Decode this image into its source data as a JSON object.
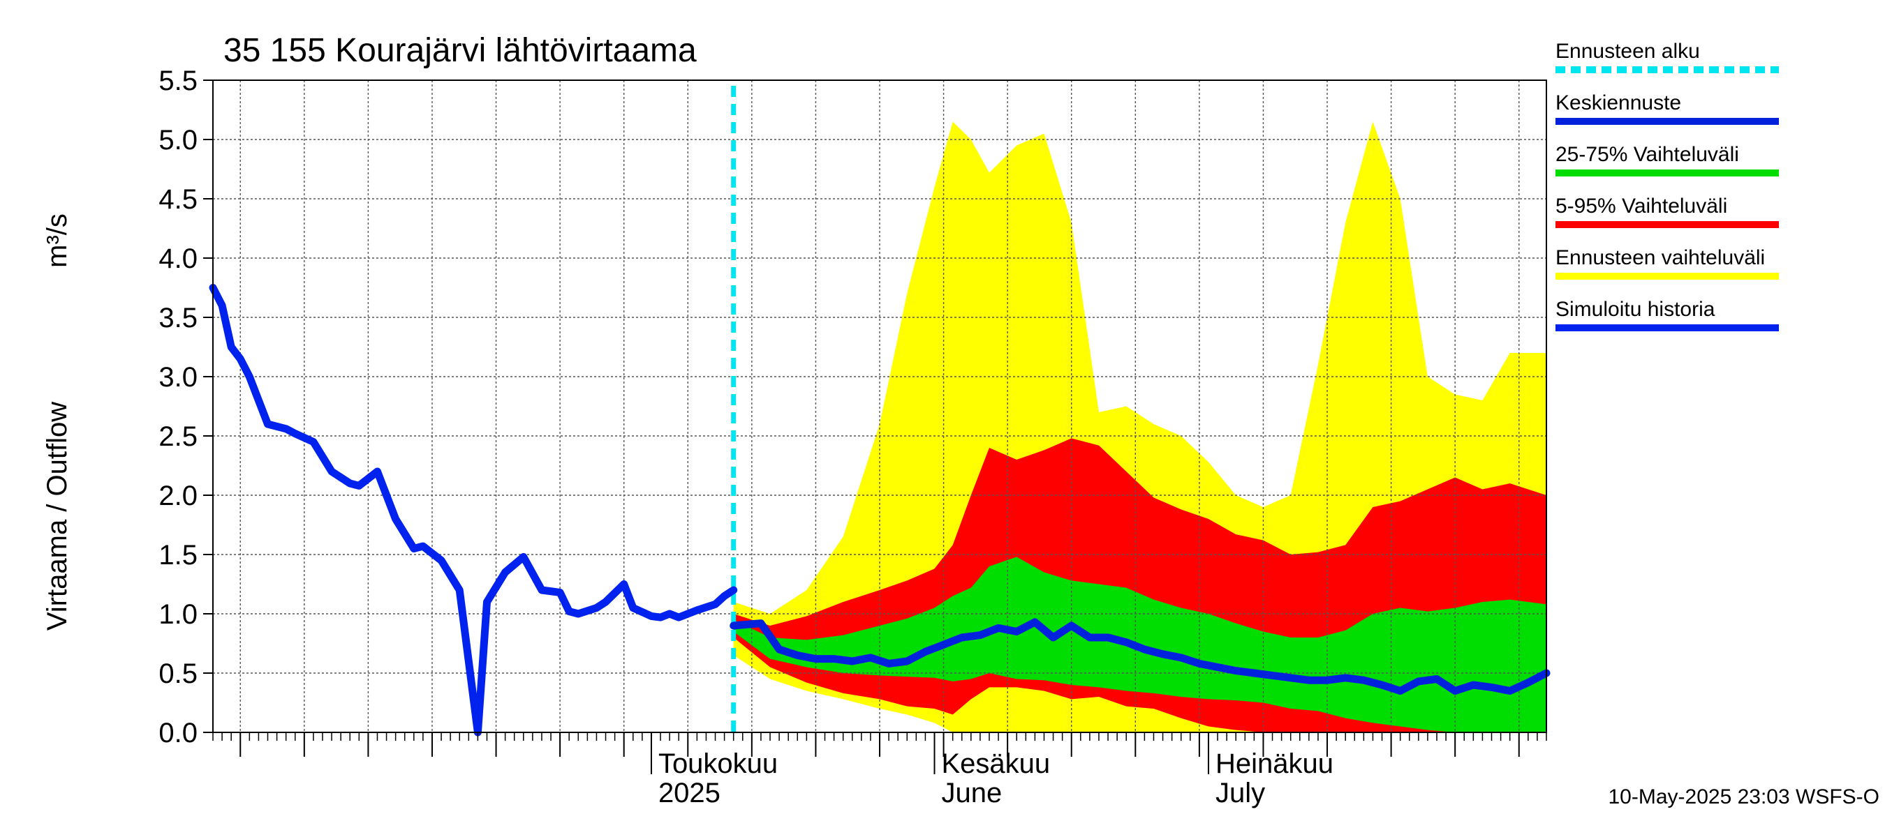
{
  "chart_data": {
    "type": "area",
    "title": "35 155 Kourajärvi lähtövirtaama",
    "ylabel": "Virtaama / Outflow",
    "yunit": "m³/s",
    "ylim": [
      0,
      5.5
    ],
    "yticks": [
      "0.0",
      "0.5",
      "1.0",
      "1.5",
      "2.0",
      "2.5",
      "3.0",
      "3.5",
      "4.0",
      "4.5",
      "5.0",
      "5.5"
    ],
    "xlim": [
      "2025-03-14",
      "2025-08-07"
    ],
    "grid": true,
    "legend_position": "right",
    "x_month_labels": [
      {
        "date": "2025-05-01",
        "line1": "Toukokuu",
        "line2": "2025"
      },
      {
        "date": "2025-06-01",
        "line1": "Kesäkuu",
        "line2": "June"
      },
      {
        "date": "2025-07-01",
        "line1": "Heinäkuu",
        "line2": "July"
      }
    ],
    "forecast_start": "2025-05-10",
    "colors": {
      "forecast_start": "#00e5ee",
      "mean": "#0022dd",
      "iqr": "#00dd00",
      "p5_95": "#ff0000",
      "range": "#ffff00",
      "history": "#0022ee"
    },
    "series": [
      {
        "name": "Simuloitu historia",
        "key": "history",
        "x": [
          "2025-03-14",
          "2025-03-15",
          "2025-03-16",
          "2025-03-17",
          "2025-03-18",
          "2025-03-19",
          "2025-03-20",
          "2025-03-21",
          "2025-03-22",
          "2025-03-23",
          "2025-03-25",
          "2025-03-27",
          "2025-03-29",
          "2025-03-30",
          "2025-04-01",
          "2025-04-03",
          "2025-04-05",
          "2025-04-06",
          "2025-04-08",
          "2025-04-10",
          "2025-04-12",
          "2025-04-13",
          "2025-04-15",
          "2025-04-17",
          "2025-04-19",
          "2025-04-21",
          "2025-04-22",
          "2025-04-23",
          "2025-04-25",
          "2025-04-26",
          "2025-04-28",
          "2025-04-29",
          "2025-05-01",
          "2025-05-02",
          "2025-05-03",
          "2025-05-04",
          "2025-05-06",
          "2025-05-08",
          "2025-05-09",
          "2025-05-10"
        ],
        "y": [
          3.75,
          3.6,
          3.25,
          3.15,
          3.0,
          2.8,
          2.6,
          2.58,
          2.56,
          2.52,
          2.45,
          2.2,
          2.1,
          2.08,
          2.2,
          1.8,
          1.55,
          1.57,
          1.45,
          1.2,
          0.0,
          1.1,
          1.35,
          1.48,
          1.2,
          1.18,
          1.02,
          1.0,
          1.05,
          1.1,
          1.25,
          1.05,
          0.98,
          0.97,
          1.0,
          0.97,
          1.03,
          1.08,
          1.15,
          1.2
        ]
      },
      {
        "name": "Ennusteen vaihteluväli",
        "key": "range",
        "x": [
          "2025-05-10",
          "2025-05-14",
          "2025-05-18",
          "2025-05-22",
          "2025-05-26",
          "2025-05-29",
          "2025-06-01",
          "2025-06-03",
          "2025-06-05",
          "2025-06-07",
          "2025-06-10",
          "2025-06-13",
          "2025-06-16",
          "2025-06-19",
          "2025-06-22",
          "2025-06-25",
          "2025-06-28",
          "2025-07-01",
          "2025-07-04",
          "2025-07-07",
          "2025-07-10",
          "2025-07-13",
          "2025-07-16",
          "2025-07-19",
          "2025-07-22",
          "2025-07-25",
          "2025-07-28",
          "2025-07-31",
          "2025-08-03",
          "2025-08-07"
        ],
        "upper": [
          1.1,
          1.0,
          1.2,
          1.65,
          2.6,
          3.7,
          4.6,
          5.15,
          5.0,
          4.72,
          4.95,
          5.05,
          4.3,
          2.7,
          2.75,
          2.6,
          2.5,
          2.28,
          2.0,
          1.9,
          2.0,
          3.1,
          4.3,
          5.15,
          4.5,
          3.0,
          2.85,
          2.8,
          3.2,
          3.2
        ],
        "lower": [
          0.65,
          0.45,
          0.35,
          0.28,
          0.2,
          0.15,
          0.08,
          0.0,
          0.0,
          0.0,
          0.0,
          0.0,
          0.0,
          0.0,
          0.0,
          0.0,
          0.0,
          0.0,
          0.0,
          0.0,
          0.0,
          0.0,
          0.0,
          0.0,
          0.0,
          0.0,
          0.0,
          0.0,
          0.0,
          0.0
        ]
      },
      {
        "name": "5-95% Vaihteluväli",
        "key": "p5_95",
        "x": [
          "2025-05-10",
          "2025-05-14",
          "2025-05-18",
          "2025-05-22",
          "2025-05-26",
          "2025-05-29",
          "2025-06-01",
          "2025-06-03",
          "2025-06-05",
          "2025-06-07",
          "2025-06-10",
          "2025-06-13",
          "2025-06-16",
          "2025-06-19",
          "2025-06-22",
          "2025-06-25",
          "2025-06-28",
          "2025-07-01",
          "2025-07-04",
          "2025-07-07",
          "2025-07-10",
          "2025-07-13",
          "2025-07-16",
          "2025-07-19",
          "2025-07-22",
          "2025-07-25",
          "2025-07-28",
          "2025-07-31",
          "2025-08-03",
          "2025-08-07"
        ],
        "upper": [
          1.0,
          0.9,
          0.98,
          1.1,
          1.2,
          1.28,
          1.38,
          1.58,
          2.0,
          2.4,
          2.3,
          2.38,
          2.48,
          2.42,
          2.2,
          1.98,
          1.88,
          1.8,
          1.67,
          1.62,
          1.5,
          1.52,
          1.58,
          1.9,
          1.95,
          2.05,
          2.15,
          2.05,
          2.1,
          2.0
        ],
        "lower": [
          0.8,
          0.55,
          0.42,
          0.33,
          0.28,
          0.22,
          0.2,
          0.15,
          0.28,
          0.38,
          0.38,
          0.35,
          0.28,
          0.3,
          0.22,
          0.2,
          0.12,
          0.05,
          0.02,
          0.0,
          0.0,
          0.0,
          0.0,
          0.0,
          0.0,
          0.0,
          0.0,
          0.0,
          0.0,
          0.0
        ]
      },
      {
        "name": "25-75% Vaihteluväli",
        "key": "iqr",
        "x": [
          "2025-05-10",
          "2025-05-14",
          "2025-05-18",
          "2025-05-22",
          "2025-05-26",
          "2025-05-29",
          "2025-06-01",
          "2025-06-03",
          "2025-06-05",
          "2025-06-07",
          "2025-06-10",
          "2025-06-13",
          "2025-06-16",
          "2025-06-19",
          "2025-06-22",
          "2025-06-25",
          "2025-06-28",
          "2025-07-01",
          "2025-07-04",
          "2025-07-07",
          "2025-07-10",
          "2025-07-13",
          "2025-07-16",
          "2025-07-19",
          "2025-07-22",
          "2025-07-25",
          "2025-07-28",
          "2025-07-31",
          "2025-08-03",
          "2025-08-07"
        ],
        "upper": [
          0.95,
          0.8,
          0.78,
          0.82,
          0.9,
          0.96,
          1.05,
          1.15,
          1.22,
          1.4,
          1.48,
          1.35,
          1.28,
          1.25,
          1.22,
          1.12,
          1.05,
          1.0,
          0.92,
          0.85,
          0.8,
          0.8,
          0.86,
          1.0,
          1.05,
          1.02,
          1.05,
          1.1,
          1.12,
          1.08
        ],
        "lower": [
          0.85,
          0.62,
          0.55,
          0.5,
          0.48,
          0.47,
          0.46,
          0.43,
          0.45,
          0.5,
          0.45,
          0.44,
          0.4,
          0.38,
          0.35,
          0.33,
          0.3,
          0.28,
          0.27,
          0.25,
          0.2,
          0.18,
          0.12,
          0.08,
          0.05,
          0.02,
          0.0,
          0.0,
          0.0,
          0.0
        ]
      },
      {
        "name": "Keskiennuste",
        "key": "mean",
        "x": [
          "2025-05-10",
          "2025-05-13",
          "2025-05-15",
          "2025-05-17",
          "2025-05-19",
          "2025-05-21",
          "2025-05-23",
          "2025-05-25",
          "2025-05-27",
          "2025-05-29",
          "2025-05-31",
          "2025-06-02",
          "2025-06-04",
          "2025-06-06",
          "2025-06-08",
          "2025-06-10",
          "2025-06-12",
          "2025-06-14",
          "2025-06-16",
          "2025-06-18",
          "2025-06-20",
          "2025-06-22",
          "2025-06-24",
          "2025-06-26",
          "2025-06-28",
          "2025-06-30",
          "2025-07-02",
          "2025-07-04",
          "2025-07-06",
          "2025-07-08",
          "2025-07-10",
          "2025-07-12",
          "2025-07-14",
          "2025-07-16",
          "2025-07-18",
          "2025-07-20",
          "2025-07-22",
          "2025-07-24",
          "2025-07-26",
          "2025-07-28",
          "2025-07-30",
          "2025-08-01",
          "2025-08-03",
          "2025-08-05",
          "2025-08-07"
        ],
        "y": [
          0.9,
          0.92,
          0.7,
          0.65,
          0.62,
          0.62,
          0.6,
          0.63,
          0.58,
          0.6,
          0.68,
          0.74,
          0.8,
          0.82,
          0.88,
          0.85,
          0.93,
          0.8,
          0.9,
          0.8,
          0.8,
          0.76,
          0.7,
          0.66,
          0.63,
          0.58,
          0.55,
          0.52,
          0.5,
          0.48,
          0.46,
          0.44,
          0.44,
          0.46,
          0.44,
          0.4,
          0.35,
          0.43,
          0.45,
          0.35,
          0.4,
          0.38,
          0.35,
          0.42,
          0.5
        ]
      }
    ],
    "legend": [
      {
        "label": "Ennusteen alku",
        "key": "forecast_start",
        "dashed": true
      },
      {
        "label": "Keskiennuste",
        "key": "mean"
      },
      {
        "label": "25-75% Vaihteluväli",
        "key": "iqr"
      },
      {
        "label": "5-95% Vaihteluväli",
        "key": "p5_95"
      },
      {
        "label": "Ennusteen vaihteluväli",
        "key": "range"
      },
      {
        "label": "Simuloitu historia",
        "key": "history"
      }
    ],
    "footer": "10-May-2025 23:03 WSFS-O"
  }
}
